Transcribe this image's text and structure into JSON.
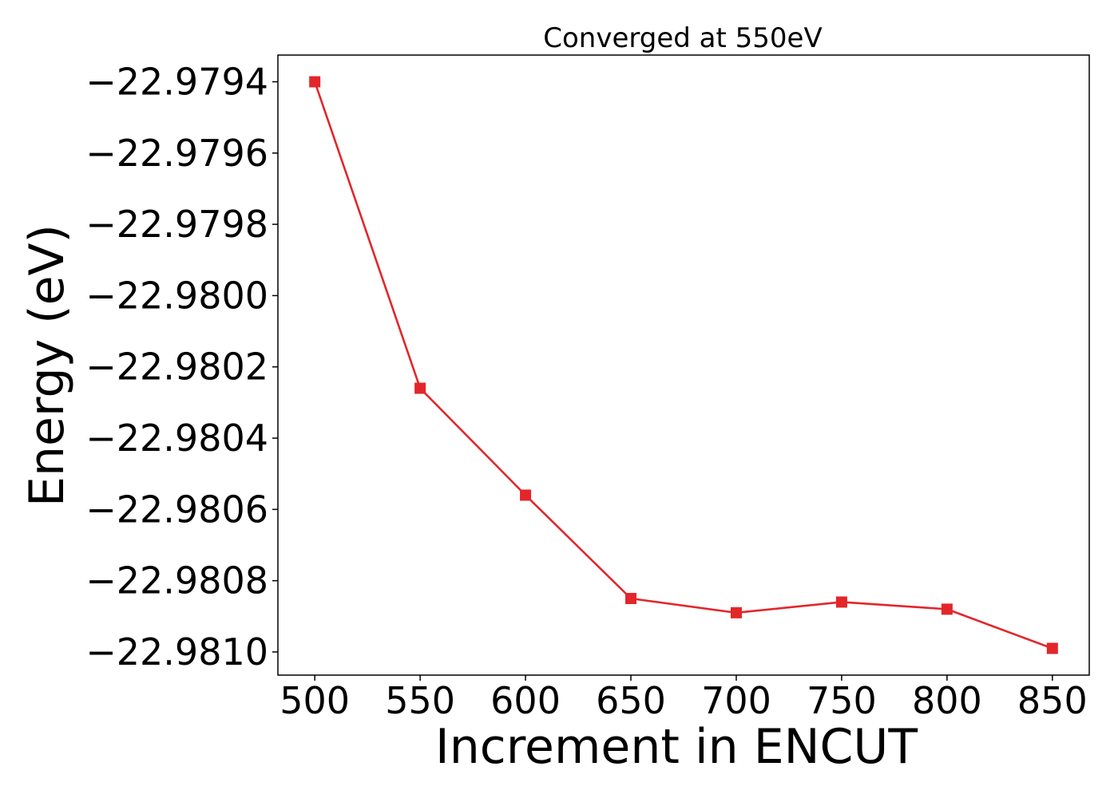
{
  "chart_data": {
    "type": "line",
    "title": "Converged at 550eV",
    "xlabel": "Increment in ENCUT",
    "ylabel": "Energy (eV)",
    "x": [
      500,
      550,
      600,
      650,
      700,
      750,
      800,
      850
    ],
    "series": [
      {
        "values": [
          -22.9794,
          -22.98026,
          -22.98056,
          -22.98085,
          -22.98089,
          -22.98086,
          -22.98088,
          -22.98099
        ],
        "color": "#e3262a",
        "marker": "square"
      }
    ],
    "x_ticks": [
      500,
      550,
      600,
      650,
      700,
      750,
      800,
      850
    ],
    "x_tick_labels": [
      "500",
      "550",
      "600",
      "650",
      "700",
      "750",
      "800",
      "850"
    ],
    "y_ticks": [
      -22.9794,
      -22.9796,
      -22.9798,
      -22.98,
      -22.9802,
      -22.9804,
      -22.9806,
      -22.9808,
      -22.981
    ],
    "y_tick_labels": [
      "−22.9794",
      "−22.9796",
      "−22.9798",
      "−22.9800",
      "−22.9802",
      "−22.9804",
      "−22.9806",
      "−22.9808",
      "−22.9810"
    ],
    "xlim": [
      482.5,
      867.5
    ],
    "ylim": [
      -22.981065,
      -22.979325
    ],
    "grid": false,
    "legend": "none"
  }
}
